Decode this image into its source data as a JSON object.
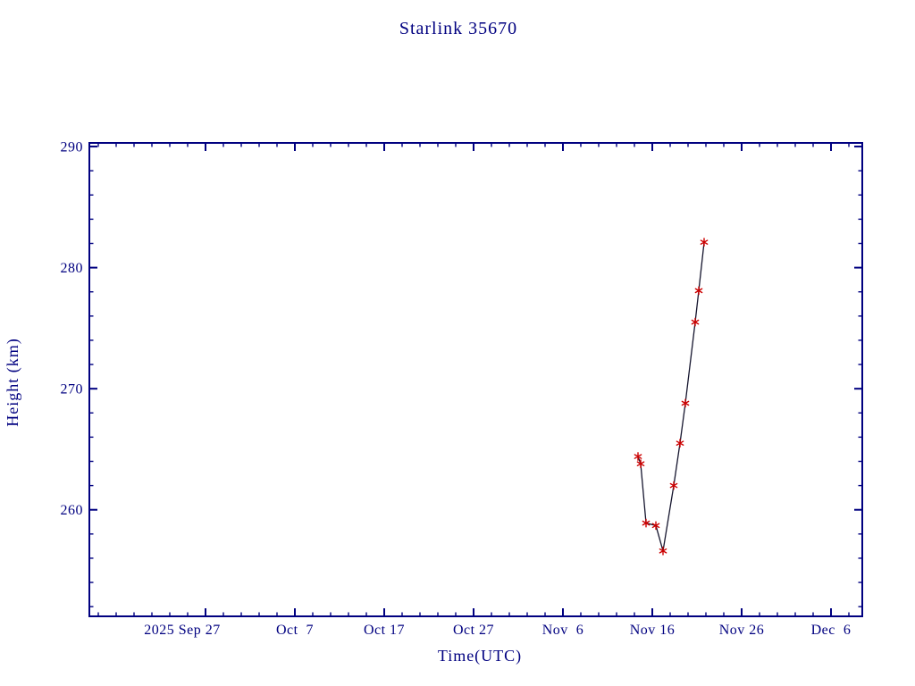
{
  "page": {
    "background_color": "#ffffff",
    "accent_color": "#000080"
  },
  "chart_data": {
    "type": "line",
    "title": "Starlink 35670",
    "xlabel": "Time(UTC)",
    "ylabel": "Height (km)",
    "legend": "none",
    "grid": false,
    "axis_color": "#000080",
    "line_color": "#15152e",
    "marker": {
      "shape": "asterisk-star",
      "color": "#cc0000",
      "size": 4.2
    },
    "x_axis": {
      "unit": "days since 2025-09-14 (left edge of plot box)",
      "range": [
        0,
        86.5
      ],
      "major_ticks": [
        {
          "label": "2025 Sep 27",
          "day": 13,
          "dx": -26
        },
        {
          "label": "Oct  7",
          "day": 23,
          "dx": 0
        },
        {
          "label": "Oct 17",
          "day": 33,
          "dx": 0
        },
        {
          "label": "Oct 27",
          "day": 43,
          "dx": 0
        },
        {
          "label": "Nov  6",
          "day": 53,
          "dx": 0
        },
        {
          "label": "Nov 16",
          "day": 63,
          "dx": 0
        },
        {
          "label": "Nov 26",
          "day": 73,
          "dx": 0
        },
        {
          "label": "Dec  6",
          "day": 83,
          "dx": 0
        }
      ],
      "minor_tick_every_days": 2
    },
    "y_axis": {
      "range": [
        251.2,
        290.3
      ],
      "major_ticks": [
        260,
        270,
        280,
        290
      ],
      "minor_tick_every_km": 2
    },
    "series": [
      {
        "name": "height",
        "points": [
          {
            "date": "2025 Nov 14.4",
            "day": 61.4,
            "height_km": 264.4
          },
          {
            "date": "2025 Nov 14.7",
            "day": 61.7,
            "height_km": 263.8
          },
          {
            "date": "2025 Nov 15.3",
            "day": 62.3,
            "height_km": 258.9
          },
          {
            "date": "2025 Nov 16.4",
            "day": 63.4,
            "height_km": 258.7
          },
          {
            "date": "2025 Nov 17.2",
            "day": 64.2,
            "height_km": 256.6
          },
          {
            "date": "2025 Nov 18.4",
            "day": 65.4,
            "height_km": 262.0
          },
          {
            "date": "2025 Nov 19.1",
            "day": 66.1,
            "height_km": 265.5
          },
          {
            "date": "2025 Nov 19.7",
            "day": 66.7,
            "height_km": 268.8
          },
          {
            "date": "2025 Nov 20.8",
            "day": 67.8,
            "height_km": 275.5
          },
          {
            "date": "2025 Nov 21.2",
            "day": 68.2,
            "height_km": 278.1
          },
          {
            "date": "2025 Nov 21.8",
            "day": 68.8,
            "height_km": 282.1
          }
        ]
      }
    ]
  }
}
